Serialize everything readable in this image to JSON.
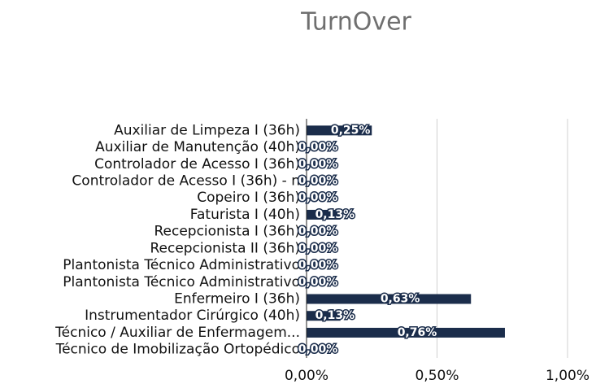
{
  "chart_data": {
    "type": "bar",
    "orientation": "horizontal",
    "title": "TurnOver",
    "categories": [
      "Auxiliar de Limpeza I (36h)",
      "Auxiliar de Manutenção (40h)",
      "Controlador de Acesso I (36h)",
      "Controlador de Acesso I (36h) - n",
      "Copeiro I (36h)",
      "Faturista I (40h)",
      "Recepcionista I (36h)",
      "Recepcionista II (36h)",
      "Plantonista Técnico Administrativo",
      "Plantonista Técnico Administrativo",
      "Enfermeiro I (36h)",
      "Instrumentador Cirúrgico (40h)",
      "Técnico / Auxiliar de Enfermagem...",
      "Técnico de Imobilização Ortopédico"
    ],
    "values": [
      0.25,
      0,
      0,
      0,
      0,
      0.13,
      0,
      0,
      0,
      0,
      0.63,
      0.13,
      0.76,
      0
    ],
    "value_labels": [
      "0,25%",
      "0,00%",
      "0,00%",
      "0,00%",
      "0,00%",
      "0,13%",
      "0,00%",
      "0,00%",
      "0,00%",
      "0,00%",
      "0,63%",
      "0,13%",
      "0,76%",
      "0,00%"
    ],
    "color": "#1b2d4b",
    "xlim": [
      0,
      1
    ],
    "xticks": [
      {
        "value": 0,
        "label": "0,00%"
      },
      {
        "value": 0.5,
        "label": "0,50%"
      },
      {
        "value": 1,
        "label": "1,00%"
      }
    ],
    "grid": true
  }
}
